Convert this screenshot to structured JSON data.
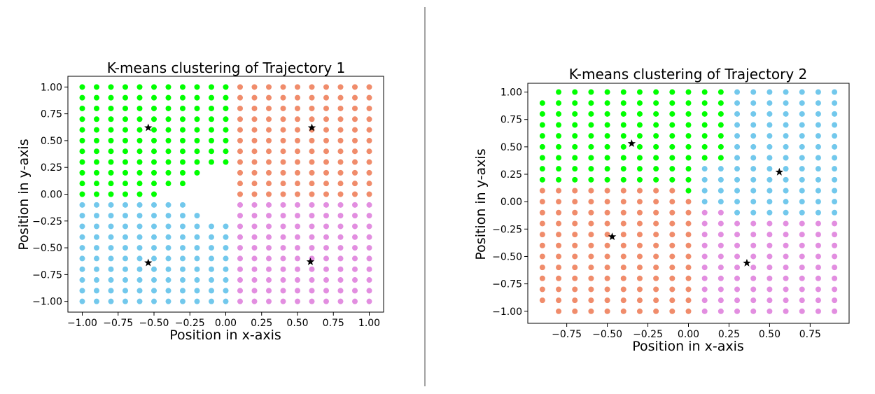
{
  "colors": {
    "green": "#00ff00",
    "orange": "#f08c6b",
    "blue": "#72c8ec",
    "violet": "#e28ee0",
    "centroid": "#000000",
    "axes": "#000000",
    "divider": "#444444"
  },
  "chart_data": [
    {
      "type": "scatter",
      "title": "K-means clustering of Trajectory 1",
      "xlabel": "Position in x-axis",
      "ylabel": "Position in y-axis",
      "xlim": [
        -1.1,
        1.1
      ],
      "ylim": [
        -1.1,
        1.1
      ],
      "xticks": [
        "−1.00",
        "−0.75",
        "−0.50",
        "−0.25",
        "0.00",
        "0.25",
        "0.50",
        "0.75",
        "1.00"
      ],
      "xtick_values": [
        -1.0,
        -0.75,
        -0.5,
        -0.25,
        0.0,
        0.25,
        0.5,
        0.75,
        1.0
      ],
      "yticks": [
        "1.00",
        "0.75",
        "0.50",
        "0.25",
        "0.00",
        "−0.25",
        "−0.50",
        "−0.75",
        "−1.00"
      ],
      "ytick_values": [
        1.0,
        0.75,
        0.5,
        0.25,
        0.0,
        -0.25,
        -0.5,
        -0.75,
        -1.0
      ],
      "grid": false,
      "legend": "none",
      "grid_points": {
        "x_range": [
          -1.0,
          1.0
        ],
        "y_range": [
          -1.0,
          1.0
        ],
        "step": 0.1
      },
      "excluded_region": "irregular notch around x -0.2 to 0.1, y -0.2 to 0.2",
      "clusters": [
        {
          "color": "green",
          "rule": "x <= 0, y >= 0",
          "centroid": [
            -0.54,
            0.62
          ]
        },
        {
          "color": "orange",
          "rule": "x >= 0.1, y >= 0",
          "centroid": [
            0.6,
            0.62
          ]
        },
        {
          "color": "blue",
          "rule": "x <= 0, y <= -0.1",
          "centroid": [
            -0.54,
            -0.64
          ]
        },
        {
          "color": "violet",
          "rule": "x >= 0.1, y <= -0.1",
          "centroid": [
            0.59,
            -0.63
          ]
        }
      ]
    },
    {
      "type": "scatter",
      "title": "K-means clustering of Trajectory 2",
      "xlabel": "Position in x-axis",
      "ylabel": "Position in y-axis",
      "xlim": [
        -0.99,
        0.99
      ],
      "ylim": [
        -1.11,
        1.08
      ],
      "xticks": [
        "−0.75",
        "−0.50",
        "−0.25",
        "0.00",
        "0.25",
        "0.50",
        "0.75"
      ],
      "xtick_values": [
        -0.75,
        -0.5,
        -0.25,
        0.0,
        0.25,
        0.5,
        0.75
      ],
      "yticks": [
        "1.00",
        "0.75",
        "0.50",
        "0.25",
        "0.00",
        "−0.25",
        "−0.50",
        "−0.75",
        "−1.00"
      ],
      "ytick_values": [
        1.0,
        0.75,
        0.5,
        0.25,
        0.0,
        -0.25,
        -0.5,
        -0.75,
        -1.0
      ],
      "grid": false,
      "legend": "none",
      "grid_points": {
        "x_range": [
          -0.9,
          0.9
        ],
        "y_range": [
          -1.0,
          1.0
        ],
        "step": 0.1
      },
      "clusters": [
        {
          "color": "green",
          "rule": "upper-left",
          "centroid": [
            -0.35,
            0.53
          ]
        },
        {
          "color": "blue",
          "rule": "upper-right",
          "centroid": [
            0.56,
            0.27
          ]
        },
        {
          "color": "orange",
          "rule": "lower-left",
          "centroid": [
            -0.47,
            -0.32
          ]
        },
        {
          "color": "violet",
          "rule": "lower-right",
          "centroid": [
            0.36,
            -0.56
          ]
        }
      ]
    }
  ]
}
